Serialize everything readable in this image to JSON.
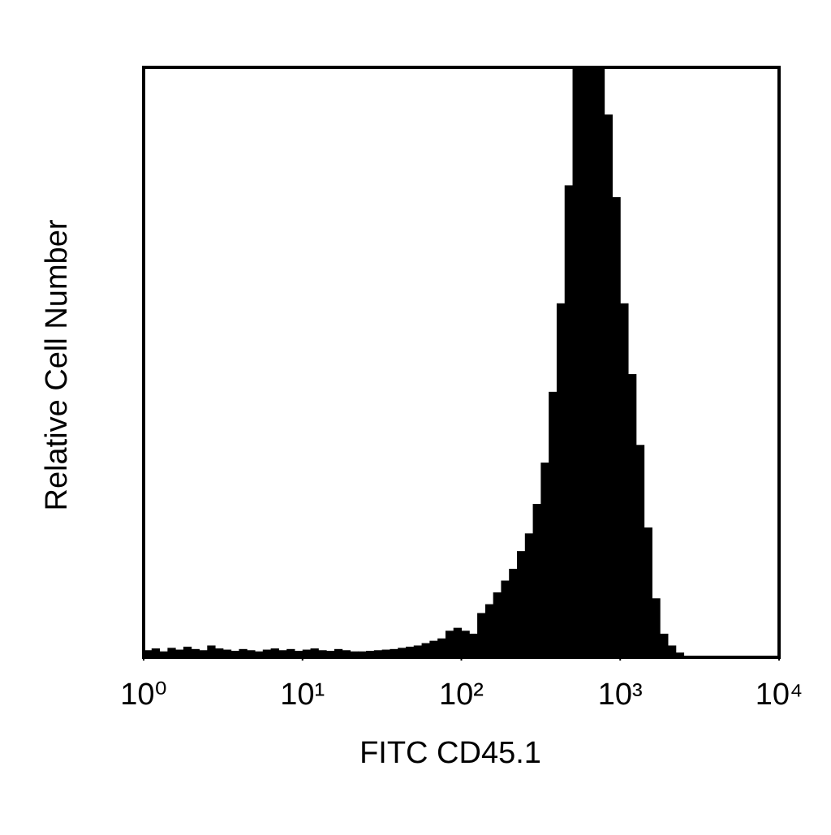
{
  "chart_data": {
    "type": "histogram",
    "xlabel": "FITC CD45.1",
    "ylabel": "Relative Cell Number",
    "xscale": "log",
    "color": "#000000",
    "xlim": [
      1,
      10000
    ],
    "xticks": [
      {
        "value": 1,
        "label": "10⁰"
      },
      {
        "value": 10,
        "label": "10¹"
      },
      {
        "value": 100,
        "label": "10²"
      },
      {
        "value": 1000,
        "label": "10³"
      },
      {
        "value": 10000,
        "label": "10⁴"
      }
    ],
    "ylim": [
      0,
      100
    ],
    "bins": [
      1,
      1.122,
      1.259,
      1.413,
      1.585,
      1.778,
      1.995,
      2.239,
      2.512,
      2.818,
      3.162,
      3.548,
      3.981,
      4.467,
      5.012,
      5.623,
      6.31,
      7.079,
      7.943,
      8.913,
      10,
      11.22,
      12.59,
      14.13,
      15.85,
      17.78,
      19.95,
      22.39,
      25.12,
      28.18,
      31.62,
      35.48,
      39.81,
      44.67,
      50.12,
      56.23,
      63.1,
      70.79,
      79.43,
      89.13,
      100,
      112.2,
      125.9,
      141.3,
      158.5,
      177.8,
      199.5,
      223.9,
      251.2,
      281.8,
      316.2,
      354.8,
      398.1,
      446.7,
      501.2,
      562.3,
      631,
      707.9,
      794.3,
      891.3,
      1000,
      1122,
      1259,
      1413,
      1585,
      1778,
      1995,
      2239,
      2512,
      2818,
      3162,
      3548,
      3981,
      4467,
      5012,
      5623,
      6310,
      7079,
      7943,
      8913,
      10000
    ],
    "counts": [
      1.2,
      1.5,
      1.0,
      1.6,
      1.3,
      1.8,
      1.4,
      1.2,
      2.0,
      1.5,
      1.3,
      1.1,
      1.4,
      1.2,
      1.0,
      1.3,
      1.5,
      1.2,
      1.4,
      1.1,
      1.3,
      1.5,
      1.2,
      1.1,
      1.4,
      1.2,
      1.0,
      1.0,
      1.1,
      1.2,
      1.3,
      1.4,
      1.6,
      1.8,
      2.0,
      2.4,
      2.8,
      3.2,
      4.5,
      5.0,
      4.5,
      4.0,
      7.5,
      9.0,
      11,
      13,
      15,
      18,
      21,
      26,
      33,
      45,
      60,
      80,
      100,
      100,
      100,
      100,
      92,
      78,
      60,
      48,
      36,
      22,
      10,
      4.0,
      2.0,
      0.8,
      0.2,
      0,
      0,
      0,
      0,
      0,
      0,
      0,
      0,
      0,
      0,
      0
    ]
  }
}
